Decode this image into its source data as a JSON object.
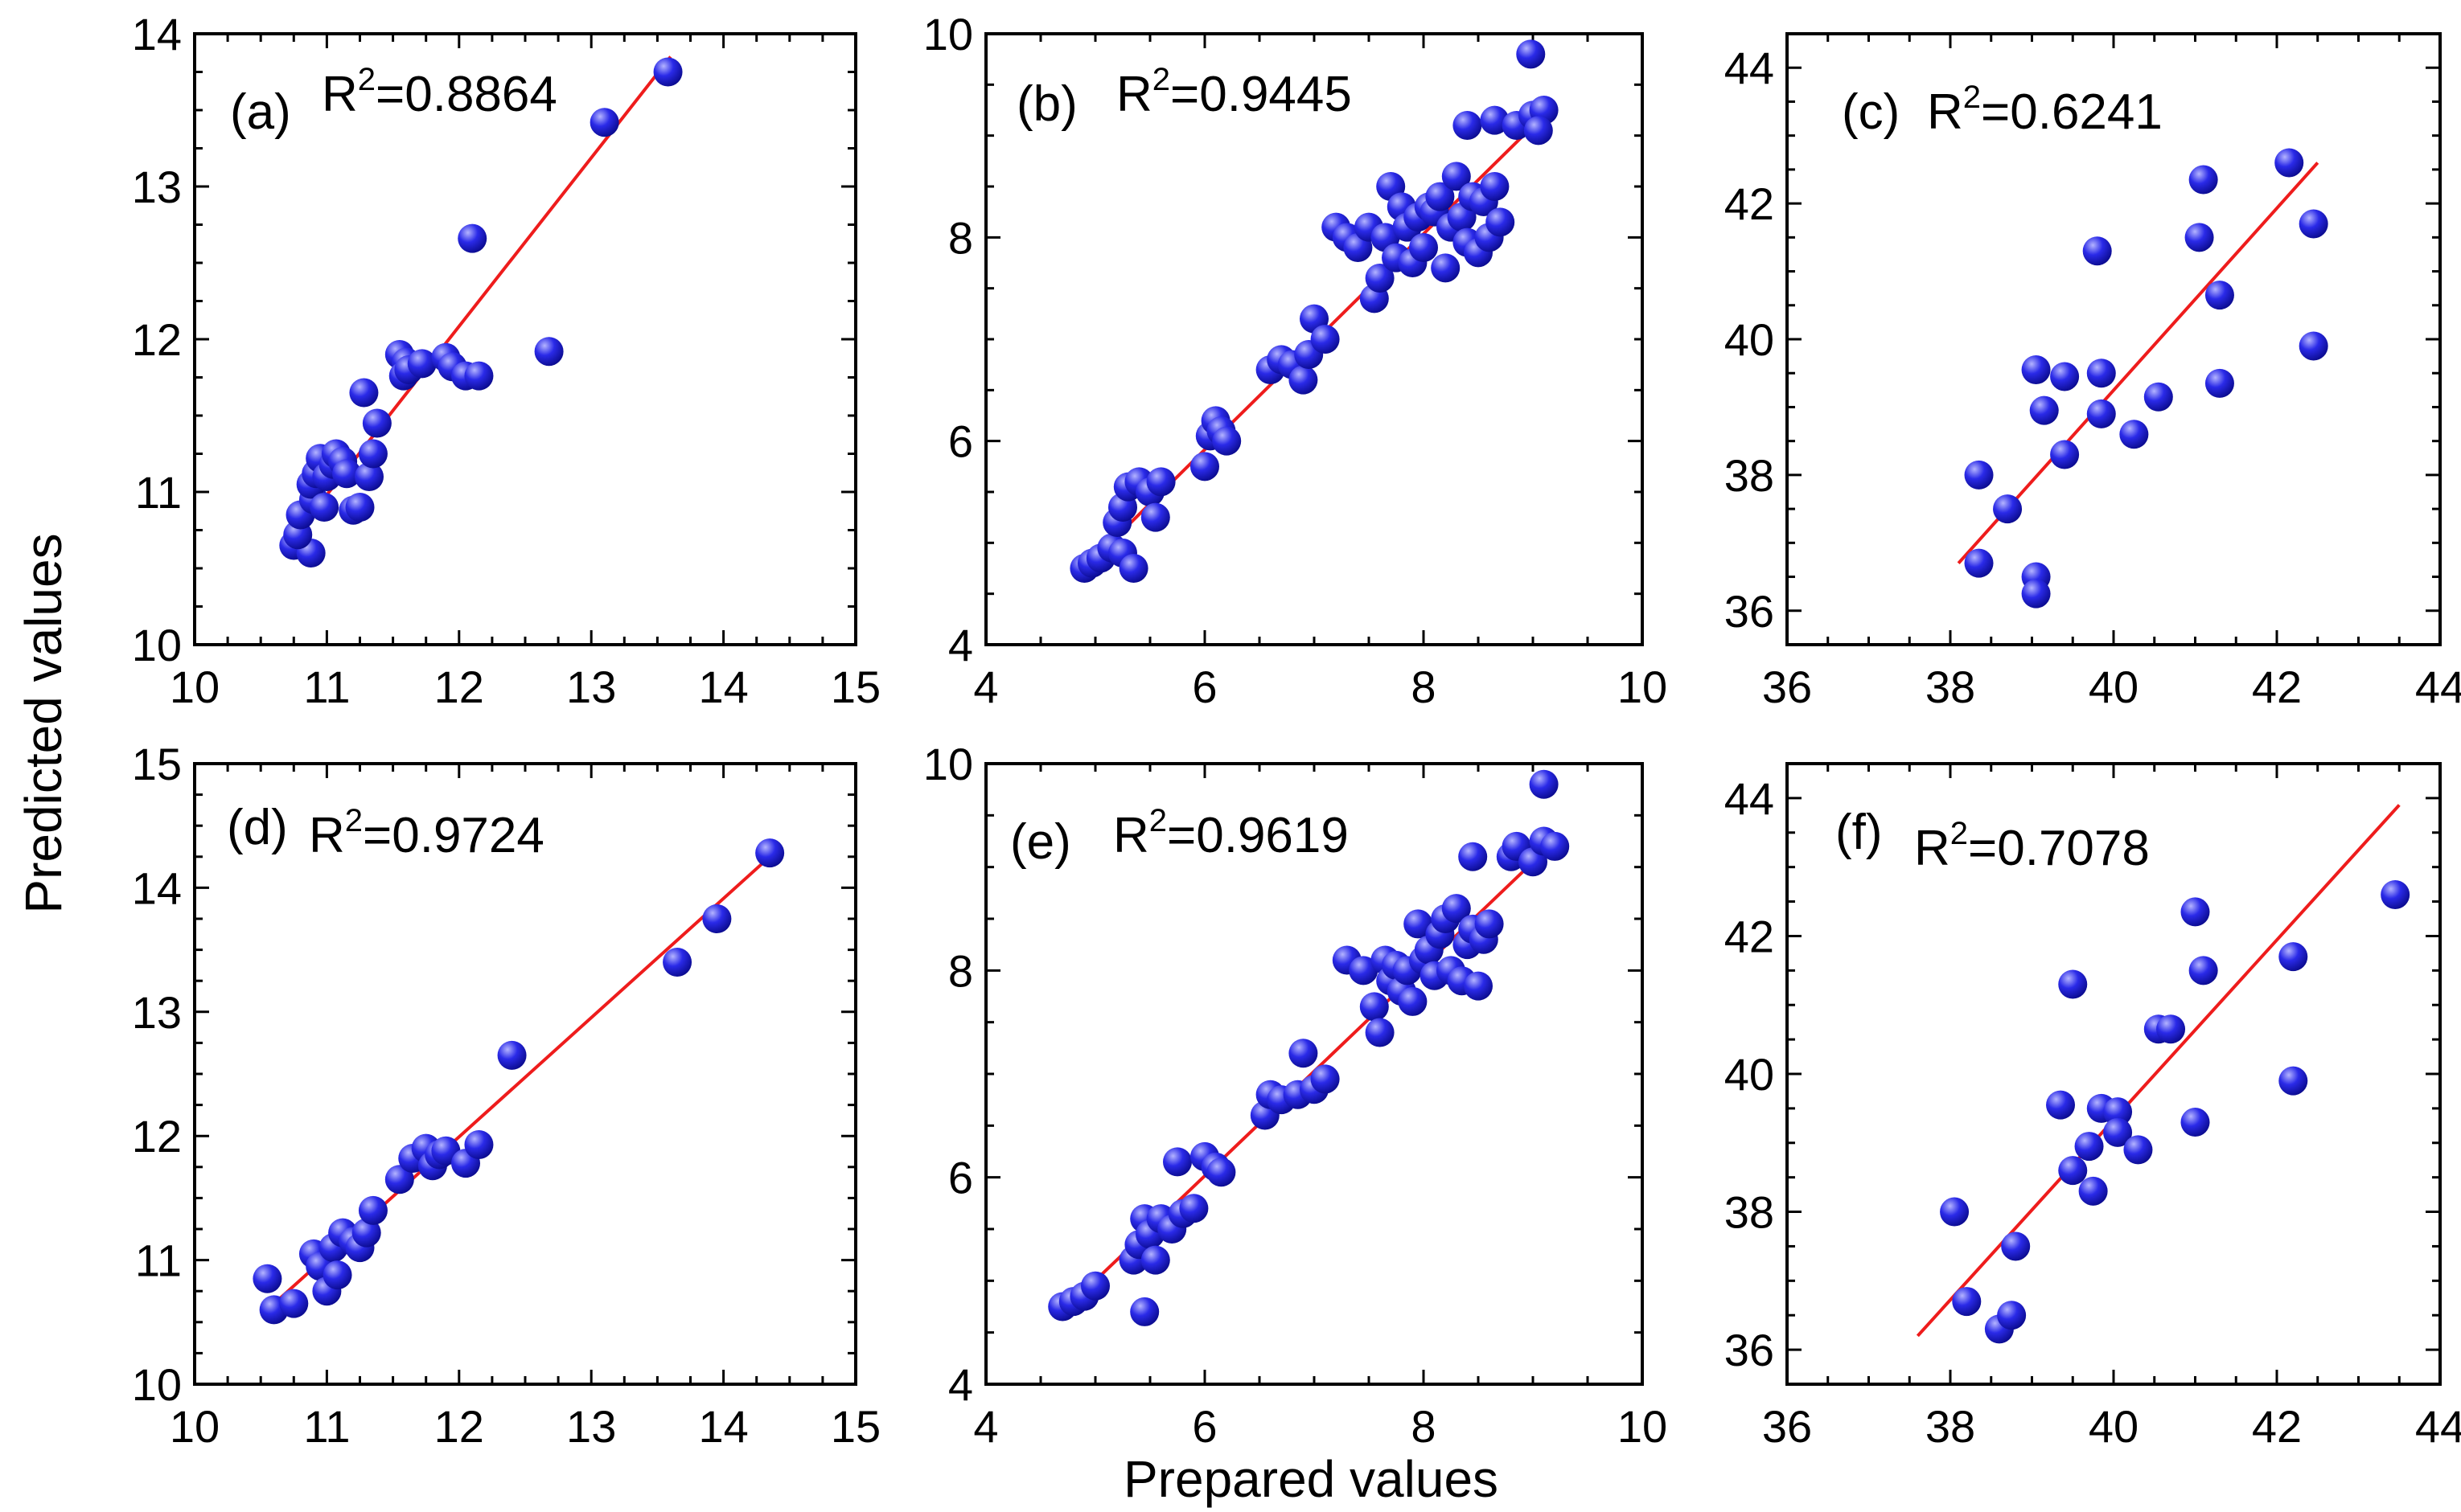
{
  "colors": {
    "point": "#2a2ae8",
    "point_highlight": "#b4b4ff",
    "point_dark": "#0a0a8c",
    "fit_line": "#ee1c1c"
  },
  "axes": {
    "xlabel": "Prepared values",
    "ylabel": "Predicted values"
  },
  "chart_data": [
    {
      "type": "scatter",
      "label": "(a)",
      "r2_text": "R",
      "r2_sup": "2",
      "r2_value": "=0.8864",
      "xlim": [
        10,
        15
      ],
      "ylim": [
        10,
        14
      ],
      "xticks": [
        10,
        11,
        12,
        13,
        14,
        15
      ],
      "yticks": [
        10,
        11,
        12,
        13,
        14
      ],
      "fit": [
        [
          10.7,
          10.65
        ],
        [
          13.6,
          13.85
        ]
      ],
      "points": [
        [
          10.75,
          10.65
        ],
        [
          10.88,
          10.6
        ],
        [
          10.78,
          10.72
        ],
        [
          10.8,
          10.85
        ],
        [
          10.9,
          10.95
        ],
        [
          10.88,
          11.05
        ],
        [
          10.92,
          11.12
        ],
        [
          10.95,
          11.22
        ],
        [
          11.0,
          11.1
        ],
        [
          10.98,
          10.9
        ],
        [
          11.05,
          11.18
        ],
        [
          11.07,
          11.25
        ],
        [
          11.12,
          11.2
        ],
        [
          11.15,
          11.12
        ],
        [
          11.2,
          10.88
        ],
        [
          11.25,
          10.9
        ],
        [
          11.28,
          11.65
        ],
        [
          11.32,
          11.1
        ],
        [
          11.35,
          11.25
        ],
        [
          11.38,
          11.45
        ],
        [
          11.55,
          11.9
        ],
        [
          11.6,
          11.85
        ],
        [
          11.58,
          11.76
        ],
        [
          11.62,
          11.8
        ],
        [
          11.72,
          11.84
        ],
        [
          11.9,
          11.88
        ],
        [
          11.95,
          11.82
        ],
        [
          12.05,
          11.76
        ],
        [
          12.15,
          11.76
        ],
        [
          12.1,
          12.66
        ],
        [
          12.68,
          11.92
        ],
        [
          13.1,
          13.42
        ],
        [
          13.58,
          13.75
        ]
      ]
    },
    {
      "type": "scatter",
      "label": "(b)",
      "r2_text": "R",
      "r2_sup": "2",
      "r2_value": "=0.9445",
      "xlim": [
        4,
        10
      ],
      "ylim": [
        4,
        10
      ],
      "xticks": [
        4,
        6,
        8,
        10
      ],
      "yticks": [
        4,
        6,
        8,
        10
      ],
      "fit": [
        [
          4.9,
          4.75
        ],
        [
          9.1,
          9.2
        ]
      ],
      "points": [
        [
          4.9,
          4.75
        ],
        [
          4.97,
          4.8
        ],
        [
          5.05,
          4.85
        ],
        [
          5.15,
          4.95
        ],
        [
          5.25,
          4.9
        ],
        [
          5.35,
          4.75
        ],
        [
          5.2,
          5.2
        ],
        [
          5.25,
          5.35
        ],
        [
          5.3,
          5.55
        ],
        [
          5.4,
          5.6
        ],
        [
          5.5,
          5.5
        ],
        [
          5.55,
          5.25
        ],
        [
          5.6,
          5.6
        ],
        [
          6.0,
          5.75
        ],
        [
          6.05,
          6.05
        ],
        [
          6.1,
          6.2
        ],
        [
          6.15,
          6.1
        ],
        [
          6.2,
          6.0
        ],
        [
          6.6,
          6.7
        ],
        [
          6.7,
          6.8
        ],
        [
          6.8,
          6.75
        ],
        [
          6.9,
          6.6
        ],
        [
          6.95,
          6.85
        ],
        [
          7.0,
          7.2
        ],
        [
          7.1,
          7.0
        ],
        [
          7.2,
          8.1
        ],
        [
          7.3,
          8.0
        ],
        [
          7.4,
          7.9
        ],
        [
          7.5,
          8.1
        ],
        [
          7.55,
          7.4
        ],
        [
          7.6,
          7.6
        ],
        [
          7.65,
          8.0
        ],
        [
          7.7,
          8.5
        ],
        [
          7.75,
          7.8
        ],
        [
          7.8,
          8.3
        ],
        [
          7.85,
          8.1
        ],
        [
          7.9,
          7.75
        ],
        [
          7.95,
          8.2
        ],
        [
          8.0,
          7.9
        ],
        [
          8.05,
          8.3
        ],
        [
          8.1,
          8.25
        ],
        [
          8.15,
          8.4
        ],
        [
          8.2,
          7.7
        ],
        [
          8.25,
          8.1
        ],
        [
          8.3,
          8.6
        ],
        [
          8.35,
          8.2
        ],
        [
          8.4,
          7.95
        ],
        [
          8.45,
          8.4
        ],
        [
          8.5,
          7.85
        ],
        [
          8.55,
          8.35
        ],
        [
          8.6,
          8.0
        ],
        [
          8.65,
          8.5
        ],
        [
          8.7,
          8.15
        ],
        [
          8.4,
          9.1
        ],
        [
          8.65,
          9.15
        ],
        [
          8.85,
          9.1
        ],
        [
          9.0,
          9.2
        ],
        [
          9.1,
          9.25
        ],
        [
          9.05,
          9.05
        ],
        [
          8.98,
          9.8
        ]
      ]
    },
    {
      "type": "scatter",
      "label": "(c)",
      "r2_text": "R",
      "r2_sup": "2",
      "r2_value": "=0.6241",
      "xlim": [
        36,
        44
      ],
      "ylim": [
        35.5,
        44.5
      ],
      "xticks": [
        36,
        38,
        40,
        42,
        44
      ],
      "yticks": [
        36,
        38,
        40,
        42,
        44
      ],
      "fit": [
        [
          38.1,
          36.7
        ],
        [
          42.5,
          42.6
        ]
      ],
      "points": [
        [
          38.35,
          38.0
        ],
        [
          38.35,
          36.7
        ],
        [
          38.7,
          37.5
        ],
        [
          39.05,
          36.5
        ],
        [
          39.05,
          36.25
        ],
        [
          39.05,
          39.55
        ],
        [
          39.15,
          38.95
        ],
        [
          39.4,
          39.45
        ],
        [
          39.4,
          38.3
        ],
        [
          39.8,
          41.3
        ],
        [
          39.85,
          38.9
        ],
        [
          39.85,
          39.5
        ],
        [
          40.25,
          38.6
        ],
        [
          40.55,
          39.15
        ],
        [
          41.05,
          41.5
        ],
        [
          41.1,
          42.35
        ],
        [
          41.3,
          40.65
        ],
        [
          41.3,
          39.35
        ],
        [
          42.15,
          42.6
        ],
        [
          42.45,
          41.7
        ],
        [
          42.45,
          39.9
        ]
      ]
    },
    {
      "type": "scatter",
      "label": "(d)",
      "r2_text": "R",
      "r2_sup": "2",
      "r2_value": "=0.9724",
      "xlim": [
        10,
        15
      ],
      "ylim": [
        10,
        15
      ],
      "xticks": [
        10,
        11,
        12,
        13,
        14,
        15
      ],
      "yticks": [
        10,
        11,
        12,
        13,
        14,
        15
      ],
      "fit": [
        [
          10.55,
          10.6
        ],
        [
          14.35,
          14.25
        ]
      ],
      "points": [
        [
          10.55,
          10.85
        ],
        [
          10.6,
          10.6
        ],
        [
          10.75,
          10.65
        ],
        [
          10.9,
          11.05
        ],
        [
          10.95,
          10.95
        ],
        [
          11.0,
          10.75
        ],
        [
          11.05,
          11.1
        ],
        [
          11.08,
          10.88
        ],
        [
          11.12,
          11.22
        ],
        [
          11.2,
          11.15
        ],
        [
          11.25,
          11.1
        ],
        [
          11.3,
          11.22
        ],
        [
          11.35,
          11.4
        ],
        [
          11.55,
          11.65
        ],
        [
          11.65,
          11.82
        ],
        [
          11.75,
          11.9
        ],
        [
          11.8,
          11.76
        ],
        [
          11.85,
          11.85
        ],
        [
          11.9,
          11.88
        ],
        [
          12.05,
          11.78
        ],
        [
          12.15,
          11.93
        ],
        [
          12.4,
          12.65
        ],
        [
          13.65,
          13.4
        ],
        [
          13.95,
          13.75
        ],
        [
          14.35,
          14.28
        ]
      ]
    },
    {
      "type": "scatter",
      "label": "(e)",
      "r2_text": "R",
      "r2_sup": "2",
      "r2_value": "=0.9619",
      "xlim": [
        4,
        10
      ],
      "ylim": [
        4,
        10
      ],
      "xticks": [
        4,
        6,
        8,
        10
      ],
      "yticks": [
        4,
        6,
        8,
        10
      ],
      "fit": [
        [
          4.7,
          4.7
        ],
        [
          9.2,
          9.25
        ]
      ],
      "points": [
        [
          4.7,
          4.75
        ],
        [
          4.8,
          4.8
        ],
        [
          4.9,
          4.85
        ],
        [
          5.0,
          4.95
        ],
        [
          5.35,
          5.2
        ],
        [
          5.4,
          5.35
        ],
        [
          5.45,
          4.7
        ],
        [
          5.45,
          5.6
        ],
        [
          5.5,
          5.45
        ],
        [
          5.55,
          5.2
        ],
        [
          5.6,
          5.6
        ],
        [
          5.7,
          5.5
        ],
        [
          5.75,
          6.15
        ],
        [
          5.8,
          5.65
        ],
        [
          5.9,
          5.7
        ],
        [
          6.0,
          6.2
        ],
        [
          6.1,
          6.1
        ],
        [
          6.15,
          6.05
        ],
        [
          6.55,
          6.6
        ],
        [
          6.6,
          6.8
        ],
        [
          6.7,
          6.75
        ],
        [
          6.85,
          6.8
        ],
        [
          6.9,
          7.2
        ],
        [
          7.0,
          6.85
        ],
        [
          7.1,
          6.95
        ],
        [
          7.3,
          8.1
        ],
        [
          7.45,
          8.0
        ],
        [
          7.55,
          7.65
        ],
        [
          7.6,
          7.4
        ],
        [
          7.65,
          8.1
        ],
        [
          7.7,
          7.9
        ],
        [
          7.75,
          8.05
        ],
        [
          7.8,
          7.8
        ],
        [
          7.85,
          8.0
        ],
        [
          7.9,
          7.7
        ],
        [
          7.95,
          8.45
        ],
        [
          8.0,
          8.1
        ],
        [
          8.05,
          8.2
        ],
        [
          8.1,
          7.95
        ],
        [
          8.15,
          8.35
        ],
        [
          8.2,
          8.5
        ],
        [
          8.25,
          8.0
        ],
        [
          8.3,
          8.6
        ],
        [
          8.35,
          7.9
        ],
        [
          8.4,
          8.25
        ],
        [
          8.45,
          8.4
        ],
        [
          8.5,
          7.85
        ],
        [
          8.55,
          8.3
        ],
        [
          8.6,
          8.45
        ],
        [
          8.45,
          9.1
        ],
        [
          8.8,
          9.1
        ],
        [
          8.85,
          9.2
        ],
        [
          9.0,
          9.05
        ],
        [
          9.1,
          9.25
        ],
        [
          9.2,
          9.2
        ],
        [
          9.1,
          9.8
        ]
      ]
    },
    {
      "type": "scatter",
      "label": "(f)",
      "r2_text": "R",
      "r2_sup": "2",
      "r2_value": "=0.7078",
      "xlim": [
        36,
        44
      ],
      "ylim": [
        35.5,
        44.5
      ],
      "xticks": [
        36,
        38,
        40,
        42,
        44
      ],
      "yticks": [
        36,
        38,
        40,
        42,
        44
      ],
      "fit": [
        [
          37.6,
          36.2
        ],
        [
          43.5,
          43.9
        ]
      ],
      "points": [
        [
          38.05,
          38.0
        ],
        [
          38.2,
          36.7
        ],
        [
          38.6,
          36.3
        ],
        [
          38.75,
          36.5
        ],
        [
          38.8,
          37.5
        ],
        [
          39.35,
          39.55
        ],
        [
          39.5,
          41.3
        ],
        [
          39.5,
          38.6
        ],
        [
          39.7,
          38.95
        ],
        [
          39.75,
          38.3
        ],
        [
          39.85,
          39.5
        ],
        [
          40.05,
          39.45
        ],
        [
          40.05,
          39.15
        ],
        [
          40.3,
          38.9
        ],
        [
          40.55,
          40.65
        ],
        [
          40.7,
          40.65
        ],
        [
          41.0,
          42.35
        ],
        [
          41.0,
          39.3
        ],
        [
          41.1,
          41.5
        ],
        [
          42.2,
          41.7
        ],
        [
          42.2,
          39.9
        ],
        [
          43.45,
          42.6
        ]
      ]
    }
  ]
}
